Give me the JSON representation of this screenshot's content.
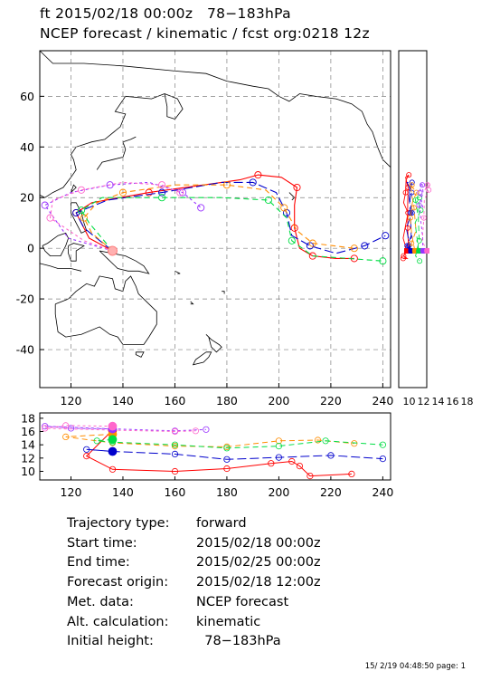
{
  "header": {
    "line1": "ft 2015/02/18 00:00z   78−183hPa",
    "line2": "NCEP forecast / kinematic / fcst org:0218 12z"
  },
  "chart_data": [
    {
      "type": "map",
      "x_ticks": [
        120,
        140,
        160,
        180,
        200,
        220,
        240
      ],
      "y_ticks": [
        60,
        40,
        20,
        0,
        -20,
        -40
      ],
      "xlim": [
        108,
        243
      ],
      "ylim": [
        -55,
        78
      ],
      "grid": true
    },
    {
      "type": "line",
      "role": "side-panel",
      "x_ticks": [
        "10",
        "12",
        "14",
        "16",
        "18"
      ]
    },
    {
      "type": "line",
      "role": "height-panel",
      "x_ticks": [
        120,
        140,
        160,
        180,
        200,
        220,
        240
      ],
      "y_ticks": [
        18,
        16,
        14,
        12,
        10
      ],
      "xlim": [
        108,
        243
      ],
      "ylim": [
        8.7,
        18.8
      ]
    }
  ],
  "trajectories": [
    {
      "color": "#ff0000",
      "dash": "none",
      "main": [
        [
          136,
          -1
        ],
        [
          127,
          4
        ],
        [
          122,
          14
        ],
        [
          128,
          18
        ],
        [
          150,
          22
        ],
        [
          185,
          27
        ],
        [
          192,
          29
        ],
        [
          201,
          28
        ],
        [
          207,
          24
        ],
        [
          206,
          17
        ],
        [
          206,
          8
        ],
        [
          208,
          0
        ],
        [
          213,
          -3
        ],
        [
          222,
          -4
        ],
        [
          229,
          -4
        ]
      ],
      "alt": [
        [
          136,
          16.2
        ],
        [
          126,
          12.3
        ],
        [
          136,
          10.3
        ],
        [
          160,
          10.0
        ],
        [
          180,
          10.4
        ],
        [
          197,
          11.2
        ],
        [
          205,
          11.5
        ],
        [
          208,
          10.8
        ],
        [
          212,
          9.3
        ],
        [
          228,
          9.6
        ]
      ]
    },
    {
      "color": "#0000cc",
      "dash": "10,4",
      "main": [
        [
          136,
          -1
        ],
        [
          125,
          8
        ],
        [
          122,
          14
        ],
        [
          134,
          19
        ],
        [
          155,
          22
        ],
        [
          178,
          26
        ],
        [
          190,
          26
        ],
        [
          199,
          22
        ],
        [
          203,
          14
        ],
        [
          205,
          5
        ],
        [
          212,
          1
        ],
        [
          222,
          -2
        ],
        [
          233,
          1
        ],
        [
          241,
          5
        ]
      ],
      "alt": [
        [
          136,
          13.0
        ],
        [
          126,
          13.3
        ],
        [
          136,
          13.0
        ],
        [
          160,
          12.6
        ],
        [
          180,
          11.8
        ],
        [
          200,
          12.1
        ],
        [
          220,
          12.4
        ],
        [
          240,
          11.9
        ]
      ]
    },
    {
      "color": "#ff8c00",
      "dash": "6,4",
      "main": [
        [
          136,
          -1
        ],
        [
          128,
          6
        ],
        [
          125,
          12
        ],
        [
          130,
          18
        ],
        [
          140,
          22
        ],
        [
          160,
          25
        ],
        [
          180,
          25
        ],
        [
          195,
          23
        ],
        [
          202,
          16
        ],
        [
          207,
          7
        ],
        [
          213,
          2
        ],
        [
          229,
          0
        ]
      ],
      "alt": [
        [
          136,
          15.6
        ],
        [
          118,
          15.2
        ],
        [
          136,
          14.3
        ],
        [
          160,
          13.8
        ],
        [
          180,
          13.7
        ],
        [
          200,
          14.6
        ],
        [
          215,
          14.7
        ],
        [
          229,
          14.2
        ]
      ]
    },
    {
      "color": "#00dd44",
      "dash": "6,4",
      "main": [
        [
          136,
          -1
        ],
        [
          127,
          10
        ],
        [
          124,
          15
        ],
        [
          132,
          20
        ],
        [
          155,
          20
        ],
        [
          178,
          20
        ],
        [
          196,
          19
        ],
        [
          203,
          12
        ],
        [
          205,
          3
        ],
        [
          213,
          -3
        ],
        [
          240,
          -5
        ]
      ],
      "alt": [
        [
          136,
          14.8
        ],
        [
          130,
          14.6
        ],
        [
          136,
          14.4
        ],
        [
          160,
          14.0
        ],
        [
          180,
          13.5
        ],
        [
          200,
          13.8
        ],
        [
          218,
          14.6
        ],
        [
          240,
          14.0
        ]
      ]
    },
    {
      "color": "#9933ff",
      "dash": "3,3",
      "main": [
        [
          136,
          -1
        ],
        [
          119,
          4
        ],
        [
          110,
          17
        ],
        [
          120,
          22
        ],
        [
          135,
          25
        ],
        [
          150,
          26
        ],
        [
          163,
          22
        ],
        [
          170,
          16
        ]
      ],
      "alt": [
        [
          136,
          16.4
        ],
        [
          120,
          16.5
        ],
        [
          110,
          16.8
        ],
        [
          136,
          16.4
        ],
        [
          160,
          16.1
        ],
        [
          172,
          16.3
        ]
      ]
    },
    {
      "color": "#ff66cc",
      "dash": "3,3",
      "main": [
        [
          136,
          -1
        ],
        [
          125,
          3
        ],
        [
          112,
          12
        ],
        [
          113,
          19
        ],
        [
          124,
          23
        ],
        [
          140,
          26
        ],
        [
          155,
          25
        ],
        [
          162,
          22
        ]
      ],
      "alt": [
        [
          136,
          16.8
        ],
        [
          118,
          16.9
        ],
        [
          110,
          16.5
        ],
        [
          136,
          16.2
        ],
        [
          160,
          16.0
        ],
        [
          168,
          16.1
        ]
      ]
    }
  ],
  "info": [
    {
      "key": "Trajectory type:",
      "value": "forward"
    },
    {
      "key": "Start time:",
      "value": "2015/02/18 00:00z"
    },
    {
      "key": "End time:",
      "value": "2015/02/25 00:00z"
    },
    {
      "key": "Forecast origin:",
      "value": "2015/02/18 12:00z"
    },
    {
      "key": "Met. data:",
      "value": "NCEP forecast"
    },
    {
      "key": "Alt. calculation:",
      "value": "kinematic"
    },
    {
      "key": "Initial height:",
      "value": "  78−183hPa"
    }
  ],
  "footer": "15/ 2/19 04:48:50 page: 1"
}
